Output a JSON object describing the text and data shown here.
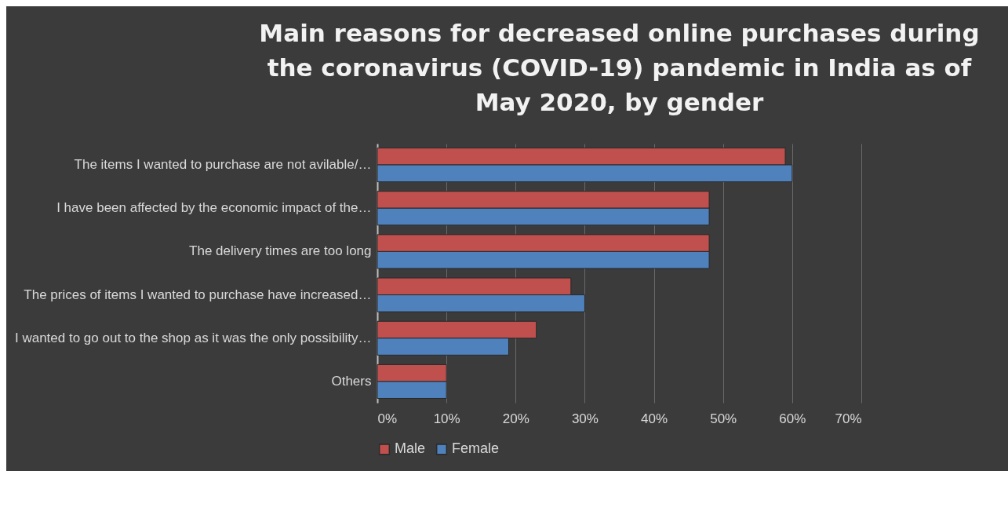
{
  "chart_data": {
    "type": "bar",
    "orientation": "horizontal",
    "title": "Main reasons for decreased online purchases during the coronavirus (COVID-19) pandemic in India as of May 2020, by gender",
    "categories": [
      "The items I wanted to purchase are not avilable/…",
      "I have been affected by the economic impact of the…",
      "The delivery times are too long",
      "The prices of items I wanted to purchase have increased…",
      "I wanted to go out to the shop as it was the only possibility…",
      "Others"
    ],
    "series": [
      {
        "name": "Male",
        "color": "#c0504d",
        "values": [
          59,
          48,
          48,
          28,
          23,
          10
        ]
      },
      {
        "name": "Female",
        "color": "#4f81bd",
        "values": [
          60,
          48,
          48,
          30,
          19,
          10
        ]
      }
    ],
    "xlim": [
      0,
      70
    ],
    "xticks": [
      {
        "value": 0,
        "label": "0%"
      },
      {
        "value": 10,
        "label": "10%"
      },
      {
        "value": 20,
        "label": "20%"
      },
      {
        "value": 30,
        "label": "30%"
      },
      {
        "value": 40,
        "label": "40%"
      },
      {
        "value": 50,
        "label": "50%"
      },
      {
        "value": 60,
        "label": "60%"
      },
      {
        "value": 70,
        "label": "70%"
      }
    ],
    "grid": "x",
    "legend": "bottom"
  }
}
